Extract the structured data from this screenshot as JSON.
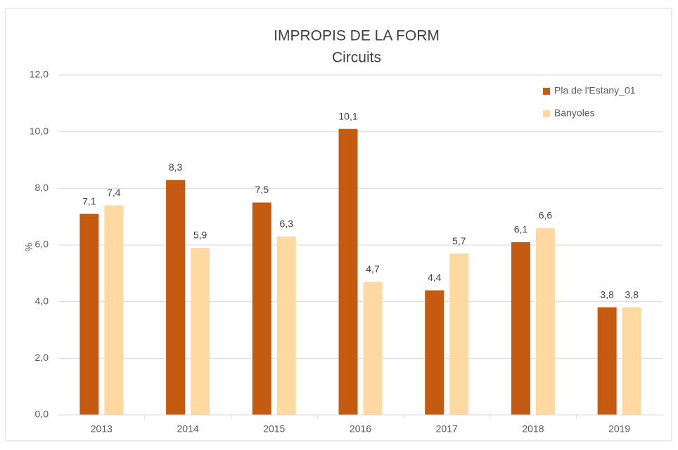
{
  "chart_data": {
    "type": "bar",
    "title": "IMPROPIS DE LA FORM",
    "subtitle": "Circuits",
    "y_label": "%",
    "categories": [
      "2013",
      "2014",
      "2015",
      "2016",
      "2017",
      "2018",
      "2019"
    ],
    "series": [
      {
        "name": "Pla de l'Estany_01",
        "color": "#c55a11",
        "values": [
          7.1,
          8.3,
          7.5,
          10.1,
          4.4,
          6.1,
          3.8
        ],
        "value_labels": [
          "7,1",
          "8,3",
          "7,5",
          "10,1",
          "4,4",
          "6,1",
          "3,8"
        ]
      },
      {
        "name": "Banyoles",
        "color": "#ffd9a0",
        "values": [
          7.4,
          5.9,
          6.3,
          4.7,
          5.7,
          6.6,
          3.8
        ],
        "value_labels": [
          "7,4",
          "5,9",
          "6,3",
          "4,7",
          "5,7",
          "6,6",
          "3,8"
        ]
      }
    ],
    "ylim": [
      0,
      12
    ],
    "yticks": [
      {
        "value": 0,
        "label": "0,0"
      },
      {
        "value": 2,
        "label": "2,0"
      },
      {
        "value": 4,
        "label": "4,0"
      },
      {
        "value": 6,
        "label": "6,0"
      },
      {
        "value": 8,
        "label": "8,0"
      },
      {
        "value": 10,
        "label": "10,0"
      },
      {
        "value": 12,
        "label": "12,0"
      }
    ],
    "grid": true,
    "legend": "top-right"
  }
}
